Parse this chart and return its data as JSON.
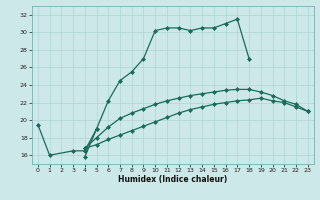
{
  "xlabel": "Humidex (Indice chaleur)",
  "bg_color": "#cce8e8",
  "line_color": "#1a6b5a",
  "xlim": [
    -0.5,
    23.5
  ],
  "ylim": [
    15.0,
    33.0
  ],
  "xticks": [
    0,
    1,
    2,
    3,
    4,
    5,
    6,
    7,
    8,
    9,
    10,
    11,
    12,
    13,
    14,
    15,
    16,
    17,
    18,
    19,
    20,
    21,
    22,
    23
  ],
  "yticks": [
    16,
    18,
    20,
    22,
    24,
    26,
    28,
    30,
    32
  ],
  "series1_x": [
    0,
    1,
    3,
    4,
    5
  ],
  "series1_y": [
    19.5,
    16.0,
    16.5,
    16.5,
    19.0
  ],
  "series2_x": [
    4,
    5,
    6,
    7,
    8,
    9,
    10,
    11,
    12,
    13,
    14,
    15,
    16,
    17,
    18
  ],
  "series2_y": [
    15.8,
    19.0,
    22.2,
    24.5,
    25.5,
    27.0,
    30.2,
    30.5,
    30.5,
    30.2,
    30.5,
    30.5,
    31.0,
    31.5,
    27.0
  ],
  "series3_x": [
    4,
    5,
    6,
    7,
    8,
    9,
    10,
    11,
    12,
    13,
    14,
    15,
    16,
    17,
    18,
    19,
    20,
    21,
    22,
    23
  ],
  "series3_y": [
    16.8,
    17.2,
    17.8,
    18.3,
    18.8,
    19.3,
    19.8,
    20.3,
    20.8,
    21.2,
    21.5,
    21.8,
    22.0,
    22.2,
    22.3,
    22.5,
    22.2,
    22.0,
    21.5,
    21.0
  ],
  "series4_x": [
    4,
    5,
    6,
    7,
    8,
    9,
    10,
    11,
    12,
    13,
    14,
    15,
    16,
    17,
    18,
    19,
    20,
    21,
    22,
    23
  ],
  "series4_y": [
    16.8,
    18.0,
    19.2,
    20.2,
    20.8,
    21.3,
    21.8,
    22.2,
    22.5,
    22.8,
    23.0,
    23.2,
    23.4,
    23.5,
    23.5,
    23.2,
    22.8,
    22.2,
    21.8,
    21.0
  ]
}
